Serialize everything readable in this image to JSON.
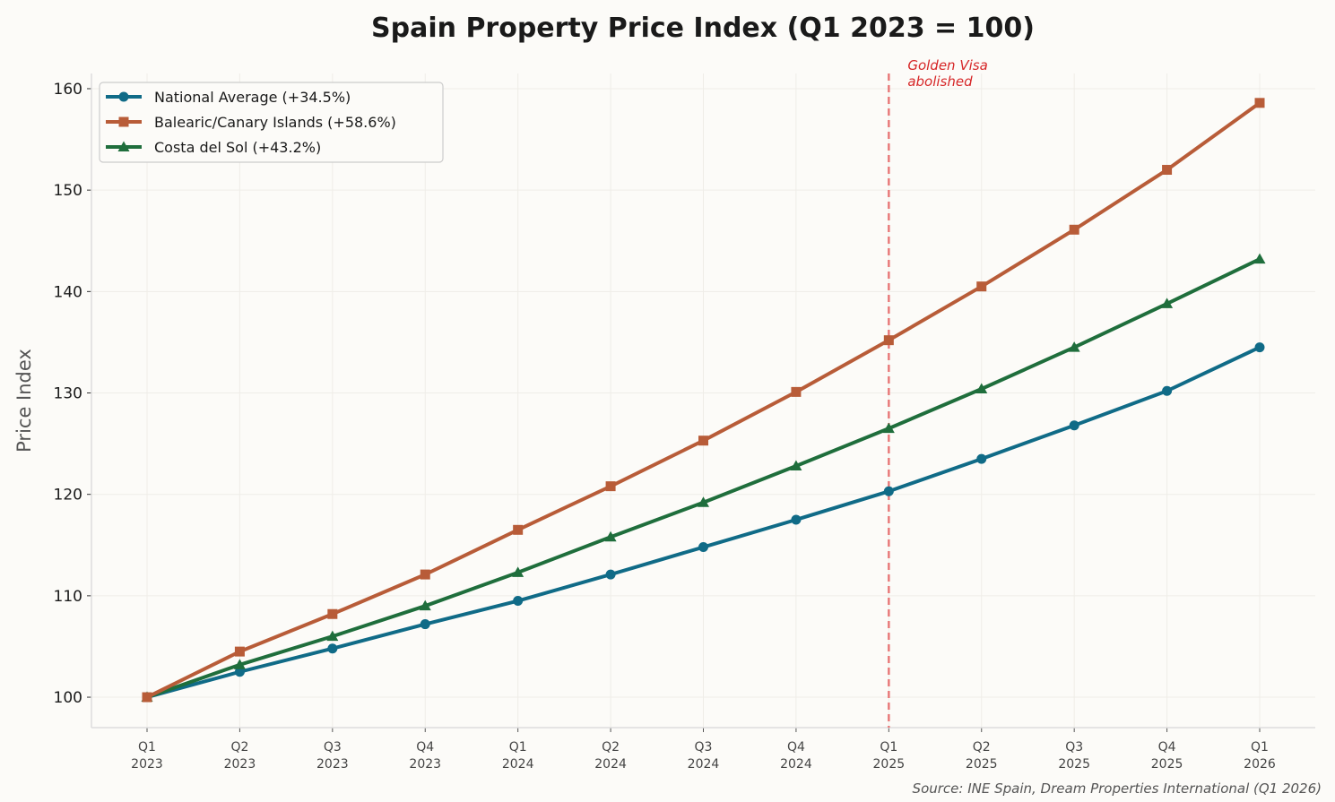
{
  "chart_data": {
    "type": "line",
    "title": "Spain Property Price Index (Q1 2023 = 100)",
    "xlabel": "",
    "ylabel": "Price Index",
    "categories": [
      [
        "Q1",
        "2023"
      ],
      [
        "Q2",
        "2023"
      ],
      [
        "Q3",
        "2023"
      ],
      [
        "Q4",
        "2023"
      ],
      [
        "Q1",
        "2024"
      ],
      [
        "Q2",
        "2024"
      ],
      [
        "Q3",
        "2024"
      ],
      [
        "Q4",
        "2024"
      ],
      [
        "Q1",
        "2025"
      ],
      [
        "Q2",
        "2025"
      ],
      [
        "Q3",
        "2025"
      ],
      [
        "Q4",
        "2025"
      ],
      [
        "Q1",
        "2026"
      ]
    ],
    "ylim": [
      97,
      161.5
    ],
    "yticks": [
      100,
      110,
      120,
      130,
      140,
      150,
      160
    ],
    "grid": true,
    "legend_position": "top-left",
    "series": [
      {
        "name": "National Average (+34.5%)",
        "color": "#106b87",
        "marker": "circle",
        "values": [
          100,
          102.5,
          104.8,
          107.2,
          109.5,
          112.1,
          114.8,
          117.5,
          120.3,
          123.5,
          126.8,
          130.2,
          134.5
        ]
      },
      {
        "name": "Balearic/Canary Islands (+58.6%)",
        "color": "#b85c38",
        "marker": "square",
        "values": [
          100,
          104.5,
          108.2,
          112.1,
          116.5,
          120.8,
          125.3,
          130.1,
          135.2,
          140.5,
          146.1,
          152.0,
          158.6
        ]
      },
      {
        "name": "Costa del Sol (+43.2%)",
        "color": "#1f6e3c",
        "marker": "triangle",
        "values": [
          100,
          103.2,
          106.0,
          109.0,
          112.3,
          115.8,
          119.2,
          122.8,
          126.5,
          130.4,
          134.5,
          138.8,
          143.2
        ]
      }
    ],
    "annotations": [
      {
        "type": "vline",
        "at_category": 8,
        "color": "#e87a7a",
        "style": "dashed",
        "label_lines": [
          "Golden Visa",
          "abolished"
        ]
      }
    ],
    "source": "Source: INE Spain, Dream Properties International (Q1 2026)"
  }
}
